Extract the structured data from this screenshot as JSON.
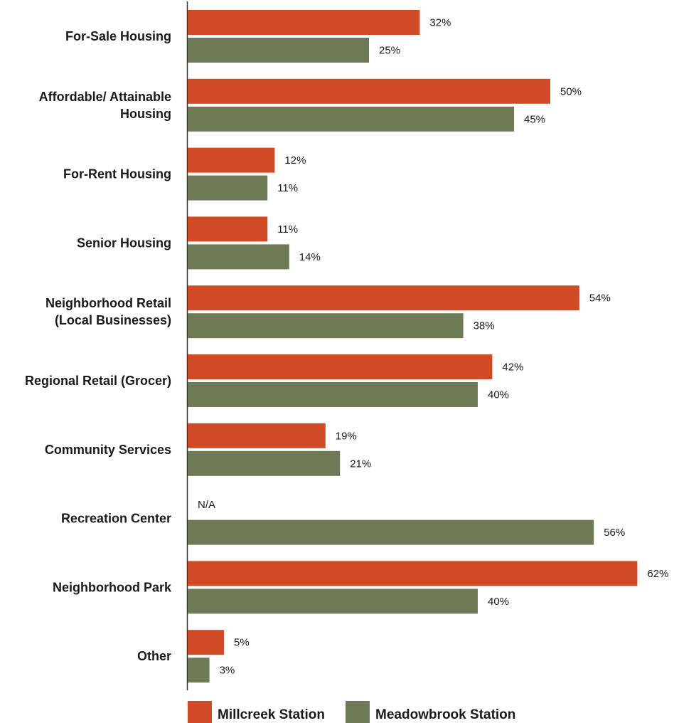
{
  "chart_data": {
    "type": "bar",
    "orientation": "horizontal",
    "categories": [
      [
        "For-Sale Housing"
      ],
      [
        "Affordable/ Attainable",
        "Housing"
      ],
      [
        "For-Rent Housing"
      ],
      [
        "Senior Housing"
      ],
      [
        "Neighborhood Retail",
        "(Local Businesses)"
      ],
      [
        "Regional Retail (Grocer)"
      ],
      [
        "Community Services"
      ],
      [
        "Recreation Center"
      ],
      [
        "Neighborhood Park"
      ],
      [
        "Other"
      ]
    ],
    "series": [
      {
        "name": "Millcreek Station",
        "color": "#d04a26",
        "values": [
          32,
          50,
          12,
          11,
          54,
          42,
          19,
          null,
          62,
          5
        ],
        "labels": [
          "32%",
          "50%",
          "12%",
          "11%",
          "54%",
          "42%",
          "19%",
          "N/A",
          "62%",
          "5%"
        ]
      },
      {
        "name": "Meadowbrook Station",
        "color": "#6e7a55",
        "values": [
          25,
          45,
          11,
          14,
          38,
          40,
          21,
          56,
          40,
          3
        ],
        "labels": [
          "25%",
          "45%",
          "11%",
          "14%",
          "38%",
          "40%",
          "21%",
          "56%",
          "40%",
          "3%"
        ]
      }
    ],
    "xlim": [
      0,
      62
    ],
    "grid": false,
    "legend_position": "bottom"
  }
}
